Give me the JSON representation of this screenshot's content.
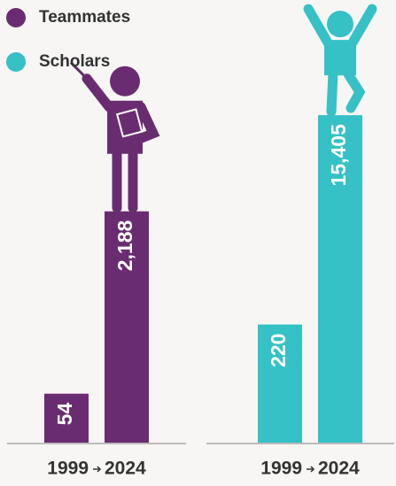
{
  "chart_data": {
    "type": "bar",
    "log_scale": true,
    "ylim": [
      20,
      16000
    ],
    "categories": [
      "1999",
      "2024"
    ],
    "series": [
      {
        "name": "Teammates",
        "color": "#6a2c70",
        "values": [
          54,
          2188
        ],
        "value_labels": [
          "54",
          "2,188"
        ]
      },
      {
        "name": "Scholars",
        "color": "#35c1c6",
        "values": [
          220,
          15405
        ],
        "value_labels": [
          "220",
          "15,405"
        ]
      }
    ]
  }
}
